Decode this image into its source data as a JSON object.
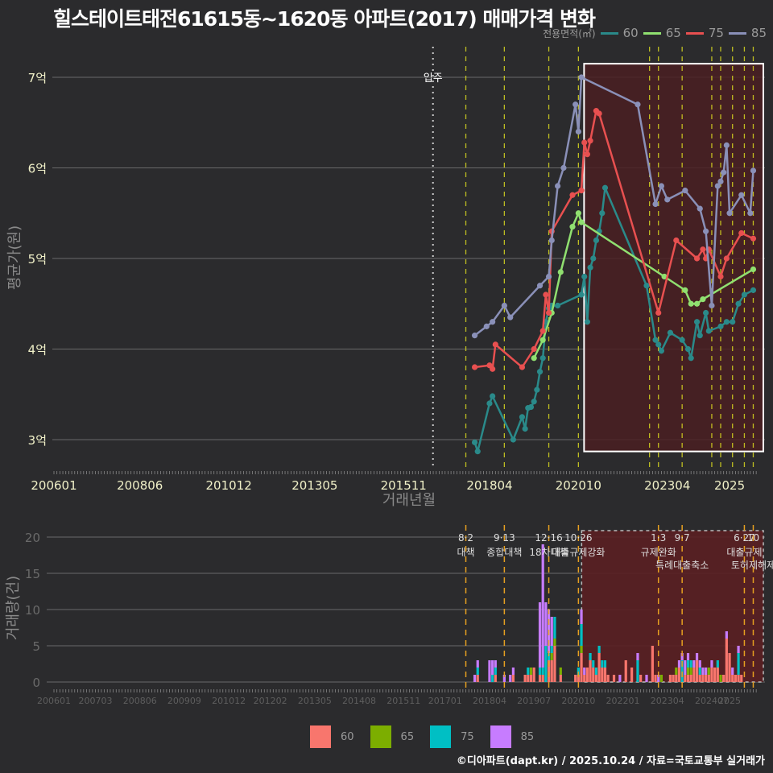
{
  "title": "힐스테이트태전61615동~1620동 아파트(2017) 매매가격 변화",
  "legend_top": {
    "label": "전용면적(㎡)",
    "items": [
      {
        "name": "60",
        "color": "#2a8a8a"
      },
      {
        "name": "65",
        "color": "#90e070"
      },
      {
        "name": "75",
        "color": "#e85050"
      },
      {
        "name": "85",
        "color": "#8a90b8"
      }
    ]
  },
  "legend_bottom": {
    "items": [
      {
        "name": "60",
        "color": "#f8766d"
      },
      {
        "name": "65",
        "color": "#7cae00"
      },
      {
        "name": "75",
        "color": "#00bfc4"
      },
      {
        "name": "85",
        "color": "#c77cff"
      }
    ]
  },
  "credit": "©디아파트(dapt.kr) / 2025.10.24 / 자료=국토교통부 실거래가",
  "chart_data": [
    {
      "type": "line",
      "title": "힐스테이트태전61615동~1620동 아파트(2017) 매매가격 변화",
      "xlabel": "거래년월",
      "ylabel": "평균가(원)",
      "x_ticks": [
        "200601",
        "200806",
        "201012",
        "201305",
        "201511",
        "201804",
        "202010",
        "202304",
        "2025"
      ],
      "y_ticks": [
        "3억",
        "4억",
        "5억",
        "6억",
        "7억"
      ],
      "ylim": [
        2.65,
        7.4
      ],
      "grid": true,
      "legend_position": "top-right",
      "annotations": [
        {
          "x": "201610",
          "label": "입주",
          "style": "dotted-white"
        }
      ],
      "highlight_box": {
        "from": "202010",
        "to": "202509",
        "ymin": 2.87,
        "ymax": 7.15
      },
      "policy_lines": [
        "201708",
        "201809",
        "201912",
        "202010",
        "202210",
        "202301",
        "202309",
        "202407",
        "202410",
        "202502",
        "202506",
        "202509"
      ],
      "series": [
        {
          "name": "60",
          "color": "#2a8a8a",
          "points": [
            [
              "201711",
              2.97
            ],
            [
              "201712",
              2.87
            ],
            [
              "201804",
              3.4
            ],
            [
              "201805",
              3.48
            ],
            [
              "201812",
              3.0
            ],
            [
              "201903",
              3.25
            ],
            [
              "201904",
              3.12
            ],
            [
              "201905",
              3.35
            ],
            [
              "201906",
              3.36
            ],
            [
              "201907",
              3.42
            ],
            [
              "201908",
              3.55
            ],
            [
              "201909",
              3.75
            ],
            [
              "201910",
              3.9
            ],
            [
              "201911",
              4.3
            ],
            [
              "201912",
              4.45
            ],
            [
              "202001",
              4.48
            ],
            [
              "202003",
              4.48
            ],
            [
              "202011",
              4.6
            ],
            [
              "202012",
              4.8
            ],
            [
              "202101",
              4.3
            ],
            [
              "202102",
              4.9
            ],
            [
              "202103",
              5.0
            ],
            [
              "202104",
              5.2
            ],
            [
              "202105",
              5.3
            ],
            [
              "202106",
              5.5
            ],
            [
              "202107",
              5.78
            ],
            [
              "202209",
              4.7
            ],
            [
              "202212",
              4.1
            ],
            [
              "202301",
              4.05
            ],
            [
              "202302",
              3.98
            ],
            [
              "202305",
              4.18
            ],
            [
              "202309",
              4.1
            ],
            [
              "202311",
              4.0
            ],
            [
              "202312",
              3.9
            ],
            [
              "202402",
              4.3
            ],
            [
              "202403",
              4.15
            ],
            [
              "202405",
              4.4
            ],
            [
              "202406",
              4.2
            ],
            [
              "202410",
              4.25
            ],
            [
              "202412",
              4.3
            ],
            [
              "202502",
              4.3
            ],
            [
              "202504",
              4.5
            ],
            [
              "202506",
              4.6
            ],
            [
              "202509",
              4.65
            ]
          ]
        },
        {
          "name": "65",
          "color": "#90e070",
          "points": [
            [
              "201907",
              3.9
            ],
            [
              "201910",
              4.1
            ],
            [
              "202001",
              4.4
            ],
            [
              "202004",
              4.85
            ],
            [
              "202008",
              5.35
            ],
            [
              "202010",
              5.5
            ],
            [
              "202011",
              5.4
            ],
            [
              "202303",
              4.8
            ],
            [
              "202310",
              4.65
            ],
            [
              "202312",
              4.5
            ],
            [
              "202402",
              4.5
            ],
            [
              "202404",
              4.55
            ],
            [
              "202509",
              4.88
            ]
          ]
        },
        {
          "name": "75",
          "color": "#e85050",
          "points": [
            [
              "201711",
              3.8
            ],
            [
              "201804",
              3.82
            ],
            [
              "201805",
              3.78
            ],
            [
              "201806",
              4.05
            ],
            [
              "201903",
              3.8
            ],
            [
              "201907",
              4.0
            ],
            [
              "201910",
              4.2
            ],
            [
              "201911",
              4.6
            ],
            [
              "201912",
              4.4
            ],
            [
              "202001",
              5.3
            ],
            [
              "202008",
              5.7
            ],
            [
              "202011",
              5.75
            ],
            [
              "202012",
              6.28
            ],
            [
              "202101",
              6.15
            ],
            [
              "202102",
              6.3
            ],
            [
              "202104",
              6.63
            ],
            [
              "202105",
              6.6
            ],
            [
              "202301",
              4.4
            ],
            [
              "202307",
              5.2
            ],
            [
              "202402",
              5.0
            ],
            [
              "202404",
              5.1
            ],
            [
              "202405",
              5.0
            ],
            [
              "202406",
              5.1
            ],
            [
              "202410",
              4.8
            ],
            [
              "202412",
              5.0
            ],
            [
              "202505",
              5.28
            ],
            [
              "202509",
              5.22
            ]
          ]
        },
        {
          "name": "85",
          "color": "#8a90b8",
          "points": [
            [
              "201711",
              4.15
            ],
            [
              "201803",
              4.25
            ],
            [
              "201805",
              4.3
            ],
            [
              "201809",
              4.48
            ],
            [
              "201811",
              4.35
            ],
            [
              "201909",
              4.7
            ],
            [
              "201912",
              4.8
            ],
            [
              "202001",
              5.2
            ],
            [
              "202003",
              5.8
            ],
            [
              "202005",
              6.0
            ],
            [
              "202009",
              6.7
            ],
            [
              "202010",
              6.4
            ],
            [
              "202011",
              7.0
            ],
            [
              "202206",
              6.7
            ],
            [
              "202212",
              5.6
            ],
            [
              "202302",
              5.8
            ],
            [
              "202304",
              5.65
            ],
            [
              "202310",
              5.75
            ],
            [
              "202403",
              5.55
            ],
            [
              "202405",
              5.3
            ],
            [
              "202407",
              4.48
            ],
            [
              "202409",
              5.8
            ],
            [
              "202410",
              5.85
            ],
            [
              "202411",
              5.95
            ],
            [
              "202412",
              6.25
            ],
            [
              "202501",
              5.5
            ],
            [
              "202505",
              5.7
            ],
            [
              "202508",
              5.5
            ],
            [
              "202509",
              5.97
            ]
          ]
        }
      ]
    },
    {
      "type": "bar",
      "stacked": true,
      "xlabel": "",
      "ylabel": "거래량(건)",
      "ylim": [
        0,
        21
      ],
      "y_ticks": [
        0,
        5,
        10,
        15,
        20
      ],
      "x_ticks": [
        "200601",
        "200703",
        "200806",
        "200909",
        "201012",
        "201202",
        "201305",
        "201408",
        "201511",
        "201701",
        "201804",
        "201907",
        "202010",
        "202201",
        "202304",
        "202407",
        "2025"
      ],
      "policy_annotations": [
        {
          "x": "201708",
          "date": "8·2",
          "label": "대책"
        },
        {
          "x": "201809",
          "date": "9·13",
          "label": "종합대책"
        },
        {
          "x": "201912",
          "date": "12·16",
          "label": "18차대책"
        },
        {
          "x": "202010",
          "date": "10·26",
          "label": "대출규제강화"
        },
        {
          "x": "202301",
          "date": "1·3",
          "label": "규제완화"
        },
        {
          "x": "202309",
          "date": "9·7",
          "label": "특례대출축소"
        },
        {
          "x": "202506",
          "date": "6·27",
          "label": "대출규제"
        },
        {
          "x": "202509",
          "date": "10",
          "label": "토허제해제"
        }
      ],
      "highlight_box": {
        "from": "202010",
        "to": "202509"
      },
      "series_order": [
        "60",
        "65",
        "75",
        "85"
      ],
      "bars": [
        [
          "201711",
          0,
          0,
          0,
          1
        ],
        [
          "201712",
          1,
          0,
          1,
          1
        ],
        [
          "201804",
          0,
          0,
          0,
          3
        ],
        [
          "201805",
          0,
          0,
          1,
          2
        ],
        [
          "201806",
          1,
          0,
          1,
          1
        ],
        [
          "201809",
          0,
          0,
          0,
          1
        ],
        [
          "201811",
          0,
          0,
          0,
          1
        ],
        [
          "201812",
          1,
          0,
          0,
          1
        ],
        [
          "201904",
          1,
          0,
          0,
          0
        ],
        [
          "201905",
          1,
          0,
          1,
          0
        ],
        [
          "201906",
          1,
          1,
          0,
          0
        ],
        [
          "201907",
          2,
          0,
          0,
          0
        ],
        [
          "201909",
          1,
          0,
          1,
          9
        ],
        [
          "201910",
          1,
          0,
          1,
          17
        ],
        [
          "201911",
          0,
          0,
          5,
          6
        ],
        [
          "201912",
          3,
          0,
          1,
          6
        ],
        [
          "202001",
          3,
          1,
          1,
          4
        ],
        [
          "202002",
          5,
          1,
          3,
          0
        ],
        [
          "202004",
          1,
          1,
          0,
          0
        ],
        [
          "202009",
          1,
          0,
          0,
          0
        ],
        [
          "202010",
          1,
          0,
          1,
          0
        ],
        [
          "202011",
          4,
          1,
          3,
          2
        ],
        [
          "202012",
          1,
          0,
          0,
          1
        ],
        [
          "202101",
          2,
          0,
          0,
          0
        ],
        [
          "202102",
          3,
          0,
          1,
          0
        ],
        [
          "202103",
          2,
          0,
          1,
          0
        ],
        [
          "202104",
          1,
          0,
          1,
          0
        ],
        [
          "202105",
          4,
          0,
          1,
          0
        ],
        [
          "202106",
          2,
          0,
          1,
          0
        ],
        [
          "202107",
          2,
          0,
          1,
          0
        ],
        [
          "202108",
          1,
          0,
          0,
          0
        ],
        [
          "202110",
          1,
          0,
          0,
          0
        ],
        [
          "202112",
          0,
          0,
          0,
          1
        ],
        [
          "202202",
          3,
          0,
          0,
          0
        ],
        [
          "202204",
          2,
          0,
          0,
          0
        ],
        [
          "202206",
          0,
          0,
          3,
          1
        ],
        [
          "202207",
          1,
          0,
          0,
          0
        ],
        [
          "202209",
          0,
          0,
          0,
          1
        ],
        [
          "202211",
          5,
          0,
          0,
          0
        ],
        [
          "202212",
          1,
          0,
          0,
          0
        ],
        [
          "202301",
          0,
          0,
          0,
          1
        ],
        [
          "202302",
          0,
          1,
          0,
          0
        ],
        [
          "202305",
          1,
          0,
          0,
          0
        ],
        [
          "202306",
          1,
          0,
          0,
          0
        ],
        [
          "202307",
          1,
          1,
          0,
          0
        ],
        [
          "202308",
          2,
          0,
          0,
          1
        ],
        [
          "202309",
          0,
          0,
          3,
          1
        ],
        [
          "202310",
          1,
          0,
          0,
          2
        ],
        [
          "202311",
          1,
          1,
          1,
          1
        ],
        [
          "202312",
          1,
          1,
          1,
          0
        ],
        [
          "202401",
          2,
          0,
          0,
          1
        ],
        [
          "202402",
          3,
          0,
          0,
          1
        ],
        [
          "202403",
          1,
          0,
          1,
          1
        ],
        [
          "202404",
          1,
          0,
          0,
          1
        ],
        [
          "202405",
          1,
          0,
          0,
          1
        ],
        [
          "202406",
          1,
          1,
          0,
          0
        ],
        [
          "202407",
          2,
          0,
          0,
          1
        ],
        [
          "202408",
          2,
          0,
          0,
          0
        ],
        [
          "202409",
          2,
          0,
          1,
          0
        ],
        [
          "202410",
          0,
          1,
          0,
          0
        ],
        [
          "202411",
          1,
          0,
          0,
          0
        ],
        [
          "202412",
          6,
          0,
          0,
          1
        ],
        [
          "202501",
          4,
          0,
          0,
          0
        ],
        [
          "202502",
          1,
          0,
          0,
          1
        ],
        [
          "202503",
          1,
          0,
          0,
          0
        ],
        [
          "202504",
          1,
          0,
          3,
          1
        ],
        [
          "202505",
          1,
          0,
          0,
          0
        ]
      ]
    }
  ],
  "axes": {
    "top_x_label": "거래년월",
    "top_y_label": "평균가(원)",
    "bottom_y_label": "거래량(건)",
    "top_x_ticks": [
      "200601",
      "200806",
      "201012",
      "201305",
      "201511",
      "201804",
      "202010",
      "202304",
      "2025"
    ],
    "top_y_ticks": [
      "7억",
      "6억",
      "5억",
      "4억",
      "3억"
    ],
    "bottom_y_ticks": [
      "20",
      "15",
      "10",
      "5",
      "0"
    ],
    "bottom_x_ticks": [
      "200601",
      "200703",
      "200806",
      "200909",
      "201012",
      "201202",
      "201305",
      "201408",
      "201511",
      "201701",
      "201804",
      "201907",
      "202010",
      "202201",
      "202304",
      "202407",
      "2025"
    ],
    "move_in_label": "입주"
  }
}
